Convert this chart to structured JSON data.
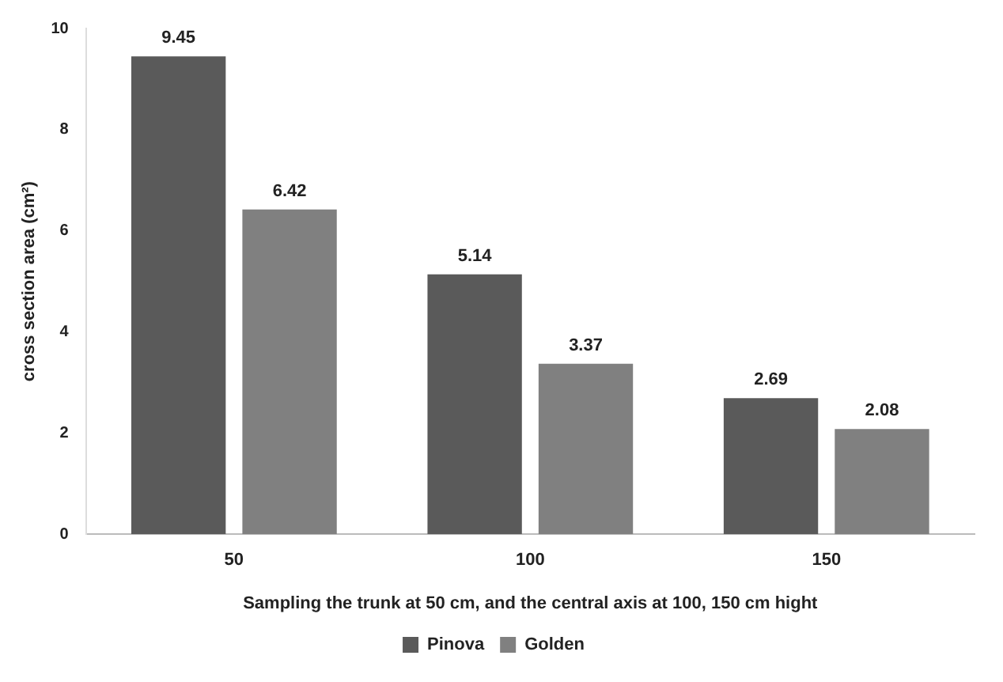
{
  "chart_data": {
    "type": "bar",
    "xlabel": "Sampling the trunk at 50 cm, and the central axis at 100, 150 cm hight",
    "ylabel": "cross section area (cm²)",
    "categories": [
      "50",
      "100",
      "150"
    ],
    "series": [
      {
        "name": "Pinova",
        "color": "#5a5a5a",
        "values": [
          9.45,
          5.14,
          2.69
        ]
      },
      {
        "name": "Golden",
        "color": "#808080",
        "values": [
          6.42,
          3.37,
          2.08
        ]
      }
    ],
    "ylim": [
      0,
      10
    ],
    "yticks": [
      0,
      2,
      4,
      6,
      8,
      10
    ],
    "grid": false,
    "legend": "bottom",
    "data_labels": true
  }
}
